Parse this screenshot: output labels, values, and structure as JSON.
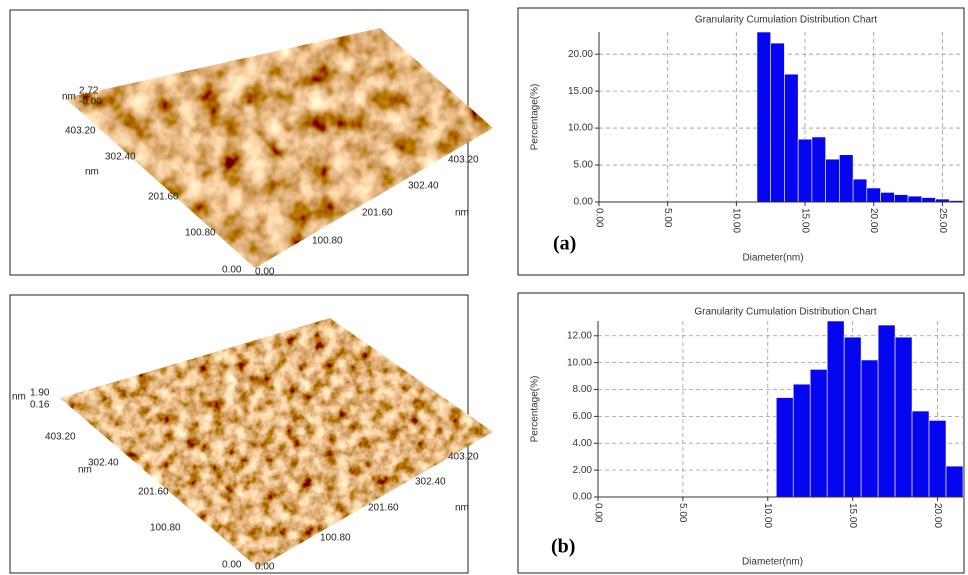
{
  "chart_data": [
    {
      "type": "histogram",
      "title": "Granularity Cumulation Distribution  Chart",
      "xlabel": "Diameter(nm)",
      "ylabel": "Percentage(%)",
      "panel_label": "(a)",
      "bins": [
        11.5,
        12.5,
        13.5,
        14.5,
        15.5,
        16.5,
        17.5,
        18.5,
        19.5,
        20.5,
        21.5,
        22.5,
        23.5,
        24.5,
        25.5,
        26.5
      ],
      "values": [
        23,
        21.5,
        17.3,
        8.5,
        8.8,
        5.8,
        6.4,
        3.1,
        1.9,
        1.3,
        1.0,
        0.8,
        0.6,
        0.4,
        0.2
      ],
      "color": "#0505f0",
      "xlim": [
        0,
        26.5
      ],
      "ylim": [
        0,
        23
      ],
      "xticks": [
        {
          "value": 0,
          "label": "0.00"
        },
        {
          "value": 5,
          "label": "5.00"
        },
        {
          "value": 10,
          "label": "10.00"
        },
        {
          "value": 15,
          "label": "15.00"
        },
        {
          "value": 20,
          "label": "20.00"
        },
        {
          "value": 25,
          "label": "25.00"
        }
      ],
      "yticks": [
        {
          "value": 0,
          "label": "0.00"
        },
        {
          "value": 5,
          "label": "5.00"
        },
        {
          "value": 10,
          "label": "10.00"
        },
        {
          "value": 15,
          "label": "15.00"
        },
        {
          "value": 20,
          "label": "20.00"
        }
      ],
      "grid": true
    },
    {
      "type": "histogram",
      "title": "Granularity Cumulation Distribution  Chart",
      "xlabel": "Diameter(nm)",
      "ylabel": "Percentage(%)",
      "panel_label": "(b)",
      "bins": [
        10.5,
        11.5,
        12.5,
        13.5,
        14.5,
        15.5,
        16.5,
        17.5,
        18.5,
        19.5,
        20.5,
        21.5
      ],
      "values": [
        7.4,
        8.4,
        9.5,
        13.1,
        11.9,
        10.2,
        12.8,
        11.9,
        6.4,
        5.7,
        2.3
      ],
      "color": "#0505f0",
      "xlim": [
        0,
        21.5
      ],
      "ylim": [
        0,
        13.1
      ],
      "xticks": [
        {
          "value": 0,
          "label": "0.00"
        },
        {
          "value": 5,
          "label": "5.00"
        },
        {
          "value": 10,
          "label": "10.00"
        },
        {
          "value": 15,
          "label": "15.00"
        },
        {
          "value": 20,
          "label": "20.00"
        }
      ],
      "yticks": [
        {
          "value": 0,
          "label": "0.00"
        },
        {
          "value": 2,
          "label": "2.00"
        },
        {
          "value": 4,
          "label": "4.00"
        },
        {
          "value": 6,
          "label": "6.00"
        },
        {
          "value": 8,
          "label": "8.00"
        },
        {
          "value": 10,
          "label": "10.00"
        },
        {
          "value": 12,
          "label": "12.00"
        }
      ],
      "grid": true
    }
  ],
  "afm_images": [
    {
      "z_unit": "nm",
      "z_max": "2.72",
      "z_min": "-0.00",
      "left_axis": {
        "labels": [
          "403.20",
          "302.40",
          "201.60",
          "100.80",
          "0.00"
        ],
        "unit": "nm"
      },
      "right_axis": {
        "labels": [
          "0.00",
          "100.80",
          "201.60",
          "302.40",
          "403.20"
        ],
        "unit": "nm"
      }
    },
    {
      "z_unit": "nm",
      "z_max": "1.90",
      "z_min": "0.16",
      "left_axis": {
        "labels": [
          "403.20",
          "302.40",
          "201.60",
          "100.80",
          "0.00"
        ],
        "unit": "nm"
      },
      "right_axis": {
        "labels": [
          "0.00",
          "100.80",
          "201.60",
          "302.40",
          "403.20"
        ],
        "unit": "nm"
      }
    }
  ]
}
